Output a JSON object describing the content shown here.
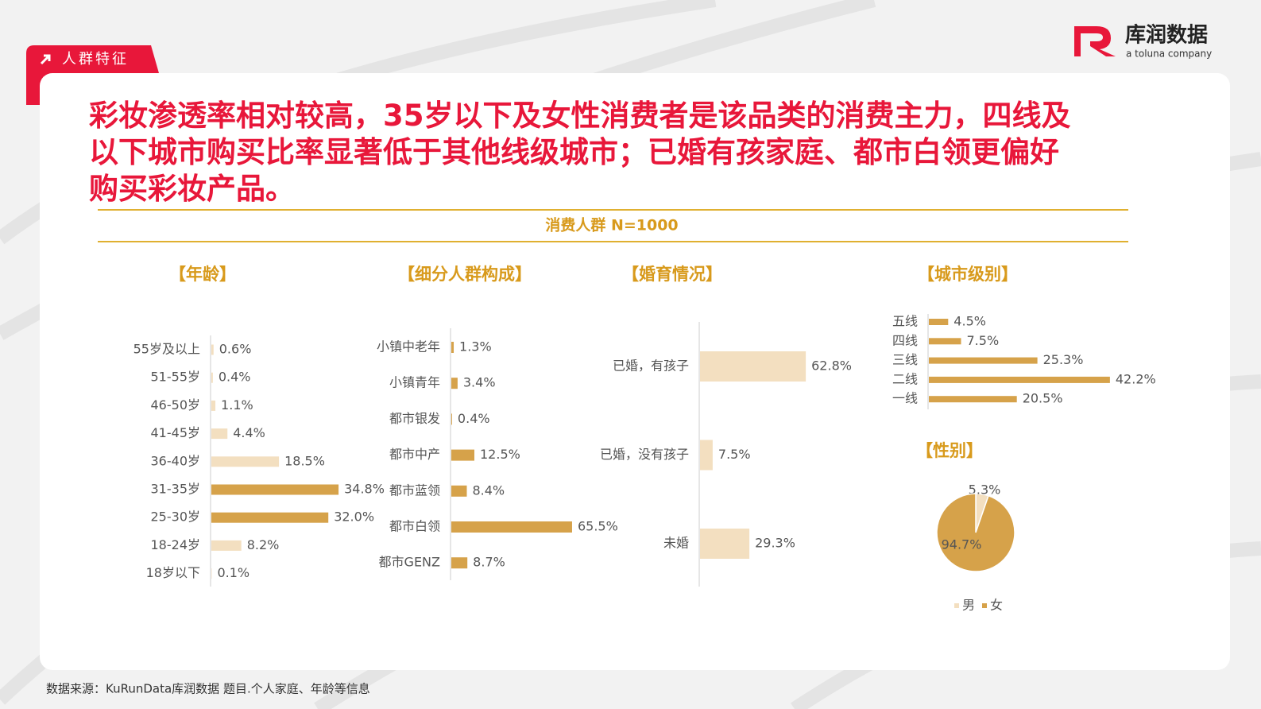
{
  "header": {
    "tag": "人群特征",
    "logo": "库润数据",
    "logo_sub": "a toluna company"
  },
  "title_lines": [
    "彩妆渗透率相对较高，35岁以下及女性消费者是该品类的消费主力，四线及",
    "以下城市购买比率显著低于其他线级城市；已婚有孩家庭、都市白领更偏好",
    "购买彩妆产品。"
  ],
  "subtitle": "消费人群 N=1000",
  "chart_data": [
    {
      "type": "bar",
      "orientation": "horizontal",
      "title": "【年龄】",
      "categories": [
        "55岁及以上",
        "51-55岁",
        "46-50岁",
        "41-45岁",
        "36-40岁",
        "31-35岁",
        "25-30岁",
        "18-24岁",
        "18岁以下"
      ],
      "values": [
        0.6,
        0.4,
        1.1,
        4.4,
        18.5,
        34.8,
        32.0,
        8.2,
        0.1
      ],
      "value_labels": [
        "0.6%",
        "0.4%",
        "1.1%",
        "4.4%",
        "18.5%",
        "34.8%",
        "32.0%",
        "8.2%",
        "0.1%"
      ],
      "colors": [
        "#f3dfc0",
        "#f3dfc0",
        "#f3dfc0",
        "#f3dfc0",
        "#f3dfc0",
        "#d6a24a",
        "#d6a24a",
        "#f3dfc0",
        "#f3dfc0"
      ]
    },
    {
      "type": "bar",
      "orientation": "horizontal",
      "title": "【细分人群构成】",
      "categories": [
        "小镇中老年",
        "小镇青年",
        "都市银发",
        "都市中产",
        "都市蓝领",
        "都市白领",
        "都市GENZ"
      ],
      "values": [
        1.3,
        3.4,
        0.4,
        12.5,
        8.4,
        65.5,
        8.7
      ],
      "value_labels": [
        "1.3%",
        "3.4%",
        "0.4%",
        "12.5%",
        "8.4%",
        "65.5%",
        "8.7%"
      ],
      "colors": [
        "#d6a24a",
        "#d6a24a",
        "#d6a24a",
        "#d6a24a",
        "#d6a24a",
        "#d6a24a",
        "#d6a24a"
      ]
    },
    {
      "type": "bar",
      "orientation": "horizontal",
      "title": "【婚育情况】",
      "categories": [
        "已婚，有孩子",
        "已婚，没有孩子",
        "未婚"
      ],
      "values": [
        62.8,
        7.5,
        29.3
      ],
      "value_labels": [
        "62.8%",
        "7.5%",
        "29.3%"
      ],
      "colors": [
        "#f3dfc0",
        "#f3dfc0",
        "#f3dfc0"
      ]
    },
    {
      "type": "bar",
      "orientation": "horizontal",
      "title": "【城市级别】",
      "categories": [
        "五线",
        "四线",
        "三线",
        "二线",
        "一线"
      ],
      "values": [
        4.5,
        7.5,
        25.3,
        42.2,
        20.5
      ],
      "value_labels": [
        "4.5%",
        "7.5%",
        "25.3%",
        "42.2%",
        "20.5%"
      ],
      "colors": [
        "#d6a24a",
        "#d6a24a",
        "#d6a24a",
        "#d6a24a",
        "#d6a24a"
      ]
    },
    {
      "type": "pie",
      "title": "【性别】",
      "categories": [
        "男",
        "女"
      ],
      "values": [
        5.3,
        94.7
      ],
      "value_labels": [
        "5.3%",
        "94.7%"
      ],
      "colors": [
        "#f3dfc0",
        "#d6a24a"
      ]
    }
  ],
  "source": "数据来源：KuRunData库润数据 题目.个人家庭、年龄等信息"
}
